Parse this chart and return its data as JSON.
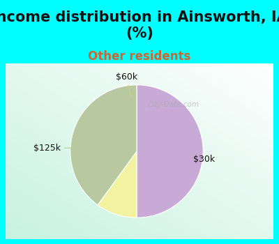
{
  "title": "Income distribution in Ainsworth, IA\n(%)",
  "subtitle": "Other residents",
  "title_fontsize": 15,
  "subtitle_fontsize": 12,
  "title_color": "#111111",
  "subtitle_color": "#cc6633",
  "slices": [
    50,
    10,
    40
  ],
  "labels": [
    "$30k",
    "$60k",
    "$125k"
  ],
  "colors": [
    "#c9aad6",
    "#f2f2a0",
    "#b8c8a0"
  ],
  "background_top": "#00ffff",
  "label_color": "#111111",
  "label_fontsize": 9,
  "figsize": [
    4.0,
    3.5
  ],
  "dpi": 100,
  "watermark": "City-Data.com",
  "watermark_color": "#aaaaaa"
}
